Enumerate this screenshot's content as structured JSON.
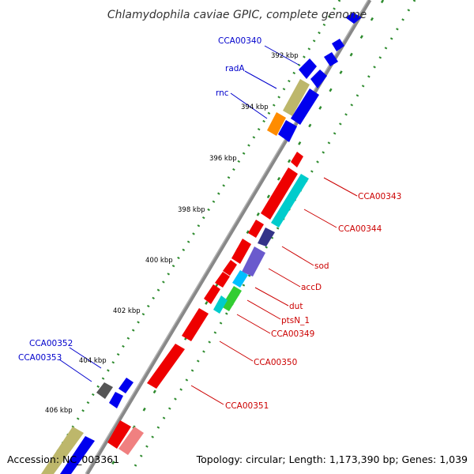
{
  "title": "Chlamydophila caviae GPIC, complete genome",
  "footer": {
    "accession": "Accession: NC_003361",
    "summary": "Topology: circular; Length: 1,173,390 bp; Genes: 1,039"
  },
  "colors": {
    "forward_label": "#0000cc",
    "reverse_label": "#cc0000",
    "backbone": "#888888",
    "tick_dots": "#2e8b2e"
  },
  "ticks": [
    {
      "label": "392 kbp"
    },
    {
      "label": "394 kbp"
    },
    {
      "label": "396 kbp"
    },
    {
      "label": "398 kbp"
    },
    {
      "label": "400 kbp"
    },
    {
      "label": "402 kbp"
    },
    {
      "label": "404 kbp"
    },
    {
      "label": "406 kbp"
    }
  ],
  "gene_labels": [
    {
      "name": "CCA00340",
      "strand": "forward"
    },
    {
      "name": "radA",
      "strand": "forward"
    },
    {
      "name": "rnc",
      "strand": "forward"
    },
    {
      "name": "CCA00352",
      "strand": "forward"
    },
    {
      "name": "CCA00353",
      "strand": "forward"
    },
    {
      "name": "CCA00343",
      "strand": "reverse"
    },
    {
      "name": "CCA00344",
      "strand": "reverse"
    },
    {
      "name": "sod",
      "strand": "reverse"
    },
    {
      "name": "accD",
      "strand": "reverse"
    },
    {
      "name": "dut",
      "strand": "reverse"
    },
    {
      "name": "ptsN_1",
      "strand": "reverse"
    },
    {
      "name": "CCA00349",
      "strand": "reverse"
    },
    {
      "name": "CCA00350",
      "strand": "reverse"
    },
    {
      "name": "CCA00351",
      "strand": "reverse"
    }
  ]
}
